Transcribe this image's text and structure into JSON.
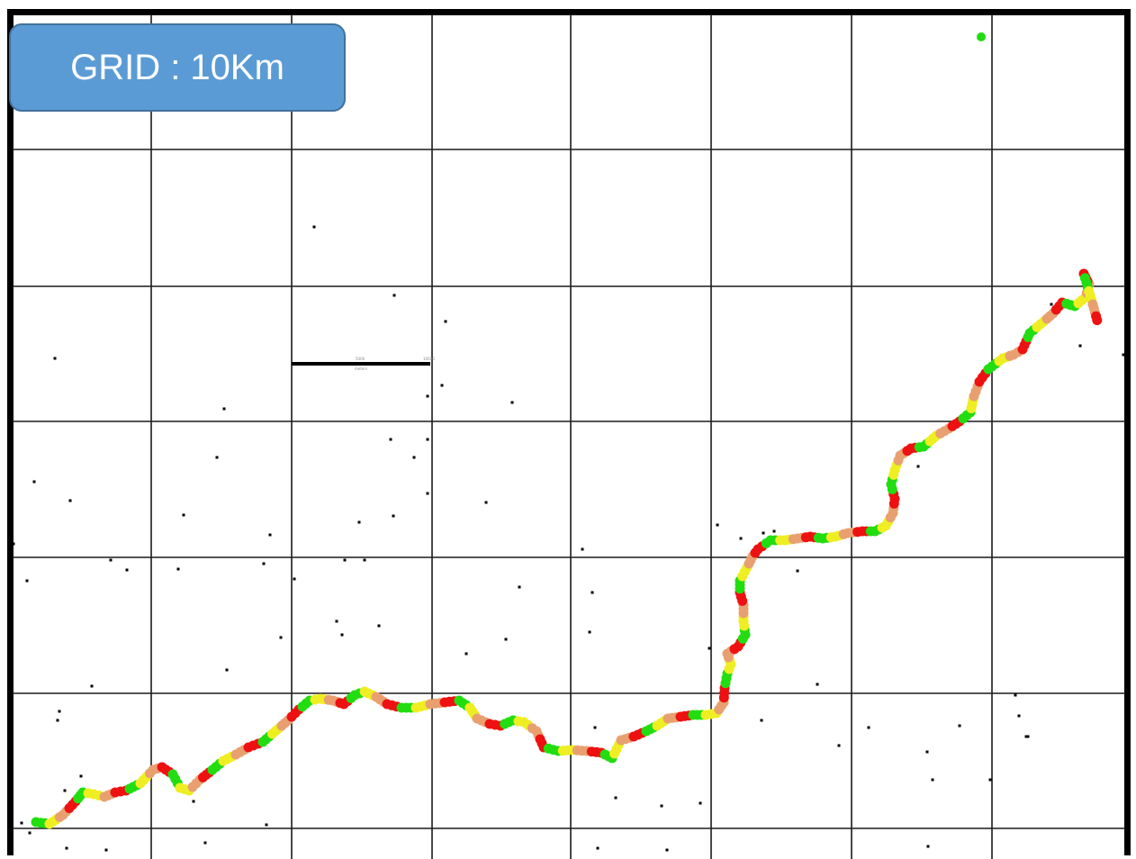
{
  "badge": {
    "label": "GRID : 10Km"
  },
  "scale_bar": {
    "labels": [
      "5000",
      "10000",
      "meters"
    ]
  },
  "legend_colors": {
    "green": "#22dd11",
    "yellow": "#eeee22",
    "orange": "#e8a070",
    "red": "#ee1111"
  }
}
